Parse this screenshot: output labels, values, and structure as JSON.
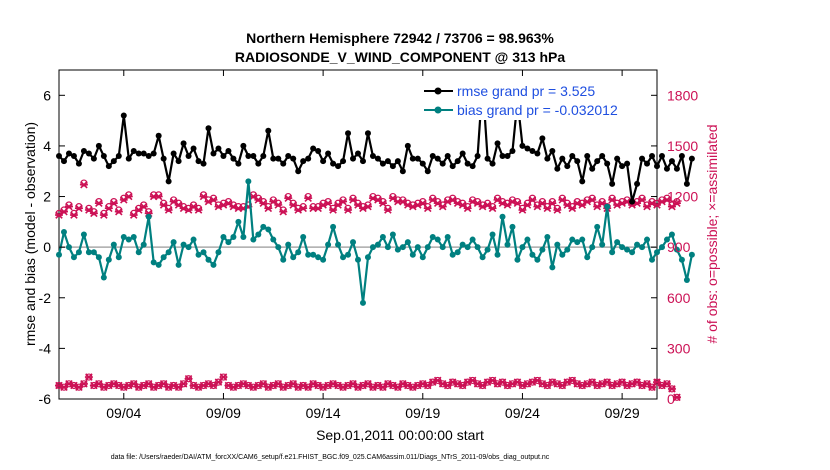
{
  "chart_data": {
    "type": "line",
    "title": "Northern Hemisphere 72942 / 73706 = 98.963%",
    "subtitle": "RADIOSONDE_V_WIND_COMPONENT @ 313 hPa",
    "xlabel": "Sep.01,2011 00:00:00 start",
    "ylabel_left": "rmse and bias (model - observation)",
    "ylabel_right": "# of obs: o=possible; ×=assimilated",
    "xlim": [
      0,
      120
    ],
    "ylim_left": [
      -6,
      7
    ],
    "ylim_right": [
      0,
      1950
    ],
    "x_ticks": [
      {
        "x": 13,
        "label": "09/04"
      },
      {
        "x": 33,
        "label": "09/09"
      },
      {
        "x": 53,
        "label": "09/14"
      },
      {
        "x": 73,
        "label": "09/19"
      },
      {
        "x": 93,
        "label": "09/24"
      },
      {
        "x": 113,
        "label": "09/29"
      }
    ],
    "y_ticks_left": [
      {
        "v": 6,
        "label": "6"
      },
      {
        "v": 4,
        "label": "4"
      },
      {
        "v": 2,
        "label": "2"
      },
      {
        "v": 0,
        "label": "0"
      },
      {
        "v": -2,
        "label": "-2"
      },
      {
        "v": -4,
        "label": "-4"
      },
      {
        "v": -6,
        "label": "-6"
      }
    ],
    "y_ticks_right": [
      {
        "v": 0,
        "label": "0"
      },
      {
        "v": 300,
        "label": "300"
      },
      {
        "v": 600,
        "label": "600"
      },
      {
        "v": 900,
        "label": "900"
      },
      {
        "v": 1200,
        "label": "1200"
      },
      {
        "v": 1500,
        "label": "1500"
      },
      {
        "v": 1800,
        "label": "1800"
      }
    ],
    "legend": [
      {
        "label": "rmse grand pr = 3.525",
        "color": "#000000"
      },
      {
        "label": "bias grand pr = -0.032012",
        "color": "#008080"
      }
    ],
    "colors": {
      "rmse": "#000000",
      "bias": "#008080",
      "obs": "#cc1155",
      "zero_line": "#aaaaaa"
    },
    "series": [
      {
        "name": "rmse",
        "axis": "left",
        "values": [
          3.6,
          3.4,
          3.7,
          3.6,
          3.3,
          3.8,
          3.7,
          3.5,
          4.0,
          3.6,
          3.2,
          3.4,
          3.6,
          5.2,
          3.5,
          3.8,
          3.7,
          3.7,
          3.6,
          3.7,
          4.4,
          3.5,
          2.6,
          3.7,
          3.4,
          4.1,
          3.6,
          3.9,
          3.4,
          3.3,
          4.7,
          3.7,
          3.9,
          3.6,
          3.8,
          3.5,
          3.3,
          4.0,
          3.6,
          3.6,
          3.3,
          3.6,
          4.6,
          3.5,
          3.5,
          3.3,
          3.6,
          3.5,
          3.0,
          3.4,
          3.5,
          3.9,
          3.8,
          3.4,
          3.7,
          3.3,
          3.2,
          3.4,
          4.5,
          3.5,
          3.7,
          3.4,
          4.5,
          3.6,
          3.5,
          3.3,
          3.4,
          3.2,
          3.4,
          3.0,
          4.0,
          3.5,
          3.5,
          3.3,
          3.0,
          3.6,
          3.5,
          3.3,
          3.6,
          3.2,
          3.4,
          3.7,
          3.3,
          3.2,
          3.6,
          6.5,
          3.5,
          3.3,
          4.1,
          3.6,
          3.6,
          3.8,
          5.8,
          4.0,
          3.9,
          3.8,
          3.7,
          4.3,
          3.5,
          3.8,
          3.1,
          3.5,
          3.2,
          3.6,
          3.4,
          2.6,
          3.6,
          3.1,
          3.4,
          3.6,
          3.3,
          2.5,
          3.5,
          3.2,
          3.3,
          1.8,
          2.5,
          3.5,
          3.3,
          3.6,
          3.2,
          3.6,
          3.1,
          3.4,
          3.1,
          3.6,
          2.5,
          3.5
        ]
      },
      {
        "name": "bias",
        "axis": "left",
        "values": [
          -0.3,
          0.6,
          0.0,
          -0.4,
          -0.2,
          0.5,
          -0.2,
          -0.2,
          -0.4,
          -1.2,
          -0.5,
          0.1,
          -0.4,
          0.4,
          0.3,
          0.4,
          -0.2,
          0.1,
          1.2,
          -0.6,
          -0.7,
          -0.4,
          -0.2,
          0.2,
          -0.7,
          0.1,
          0.0,
          0.3,
          -0.3,
          -0.2,
          -0.5,
          -0.7,
          -0.2,
          0.4,
          0.2,
          0.4,
          1.0,
          0.4,
          2.6,
          0.3,
          0.5,
          0.8,
          0.7,
          0.3,
          0.0,
          -0.5,
          0.1,
          -0.4,
          -0.2,
          0.4,
          -0.3,
          -0.3,
          -0.4,
          -0.5,
          0.1,
          0.8,
          0.1,
          -0.4,
          -0.3,
          0.2,
          -0.5,
          -2.2,
          -0.4,
          0.0,
          0.1,
          0.4,
          0.0,
          0.5,
          -0.1,
          0.0,
          0.2,
          -0.3,
          0.0,
          -0.4,
          0.0,
          0.4,
          0.3,
          0.0,
          0.4,
          -0.3,
          -0.2,
          0.1,
          0.0,
          0.3,
          0.0,
          -0.4,
          -0.1,
          0.5,
          -0.3,
          1.2,
          0.1,
          0.8,
          -0.5,
          0.0,
          0.3,
          -0.3,
          -0.5,
          -0.1,
          0.4,
          -0.8,
          0.1,
          -0.3,
          -0.1,
          0.3,
          0.2,
          0.3,
          -0.4,
          0.0,
          0.8,
          0.1,
          1.6,
          -0.2,
          0.2,
          0.0,
          -0.1,
          -0.2,
          0.1,
          0.0,
          0.3,
          -0.5,
          -0.2,
          0.0,
          0.3,
          0.5,
          -0.1,
          -0.5,
          -1.3,
          -0.3
        ]
      },
      {
        "name": "obs_possible_upper",
        "axis": "right",
        "values": [
          1100,
          1120,
          1150,
          1100,
          1140,
          1280,
          1130,
          1110,
          1170,
          1100,
          1140,
          1170,
          1120,
          1190,
          1210,
          1100,
          1130,
          1150,
          1110,
          1210,
          1210,
          1160,
          1130,
          1180,
          1160,
          1140,
          1130,
          1150,
          1130,
          1210,
          1180,
          1190,
          1150,
          1160,
          1170,
          1150,
          1140,
          1140,
          1150,
          1210,
          1190,
          1170,
          1140,
          1180,
          1160,
          1120,
          1200,
          1160,
          1130,
          1140,
          1200,
          1140,
          1140,
          1160,
          1170,
          1130,
          1160,
          1180,
          1130,
          1190,
          1160,
          1140,
          1150,
          1200,
          1190,
          1170,
          1130,
          1200,
          1180,
          1180,
          1160,
          1150,
          1160,
          1170,
          1140,
          1190,
          1170,
          1150,
          1180,
          1190,
          1170,
          1160,
          1140,
          1180,
          1170,
          1150,
          1160,
          1140,
          1190,
          1170,
          1160,
          1180,
          1170,
          1130,
          1160,
          1190,
          1150,
          1170,
          1140,
          1170,
          1130,
          1190,
          1160,
          1140,
          1170,
          1160,
          1180,
          1190,
          1150,
          1170,
          1140,
          1190,
          1160,
          1170,
          1180,
          1160,
          1170,
          1190,
          1150,
          1170,
          1160,
          1180,
          1190,
          1150,
          1170
        ]
      },
      {
        "name": "obs_assimilated_upper",
        "axis": "right",
        "values": [
          1090,
          1110,
          1140,
          1090,
          1130,
          1270,
          1120,
          1100,
          1160,
          1090,
          1130,
          1160,
          1110,
          1180,
          1200,
          1090,
          1120,
          1140,
          1100,
          1200,
          1200,
          1150,
          1120,
          1170,
          1150,
          1130,
          1120,
          1140,
          1120,
          1200,
          1170,
          1180,
          1140,
          1150,
          1160,
          1140,
          1130,
          1130,
          1140,
          1200,
          1180,
          1160,
          1130,
          1170,
          1150,
          1110,
          1190,
          1150,
          1120,
          1130,
          1190,
          1130,
          1130,
          1150,
          1160,
          1120,
          1150,
          1170,
          1120,
          1180,
          1150,
          1130,
          1140,
          1190,
          1180,
          1160,
          1120,
          1190,
          1170,
          1170,
          1150,
          1140,
          1150,
          1160,
          1130,
          1180,
          1160,
          1140,
          1170,
          1180,
          1160,
          1150,
          1130,
          1170,
          1160,
          1140,
          1150,
          1130,
          1180,
          1160,
          1150,
          1170,
          1160,
          1120,
          1150,
          1180,
          1140,
          1160,
          1130,
          1160,
          1120,
          1180,
          1150,
          1130,
          1160,
          1150,
          1170,
          1180,
          1140,
          1160,
          1130,
          1180,
          1150,
          1160,
          1170,
          1150,
          1160,
          1180,
          1140,
          1160,
          1150,
          1170,
          1180,
          1140,
          1160
        ]
      },
      {
        "name": "obs_lower",
        "axis": "right",
        "values": [
          80,
          70,
          90,
          80,
          70,
          90,
          130,
          80,
          90,
          70,
          80,
          90,
          80,
          70,
          80,
          90,
          70,
          80,
          90,
          70,
          80,
          90,
          70,
          80,
          70,
          90,
          120,
          80,
          70,
          80,
          90,
          80,
          100,
          130,
          80,
          70,
          80,
          90,
          80,
          70,
          80,
          90,
          70,
          80,
          90,
          70,
          80,
          90,
          70,
          80,
          70,
          90,
          80,
          70,
          80,
          90,
          80,
          70,
          80,
          90,
          70,
          80,
          90,
          70,
          80,
          70,
          90,
          80,
          70,
          90,
          80,
          70,
          80,
          90,
          80,
          100,
          110,
          90,
          80,
          100,
          90,
          80,
          100,
          110,
          90,
          80,
          100,
          110,
          90,
          100,
          80,
          90,
          100,
          80,
          90,
          100,
          110,
          90,
          80,
          100,
          90,
          80,
          100,
          110,
          90,
          80,
          90,
          100,
          80,
          90,
          100,
          80,
          90,
          100,
          80,
          90,
          100,
          80,
          90,
          70,
          100,
          80,
          90,
          60,
          10
        ]
      }
    ]
  }
}
